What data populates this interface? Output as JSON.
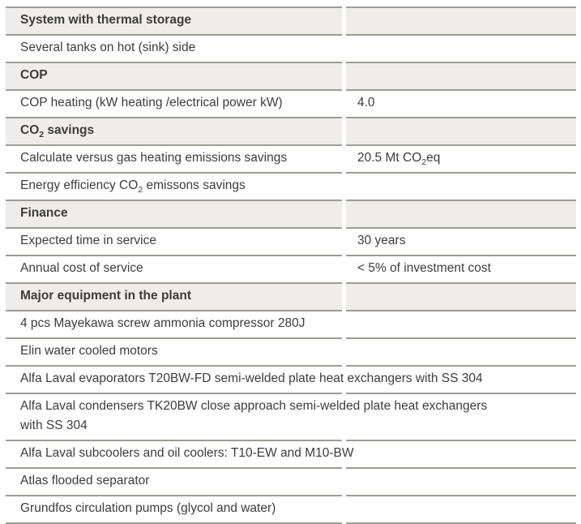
{
  "colors": {
    "page_bg": "#ffffff",
    "section_band_bg": "#eeedeb",
    "rule": "#9e9c98",
    "text": "#3d3d3d"
  },
  "table": {
    "rows": [
      {
        "type": "section",
        "label_parts": [
          {
            "t": "System with thermal storage"
          }
        ]
      },
      {
        "type": "item",
        "full_width": true,
        "label_parts": [
          {
            "t": "Several tanks on hot (sink) side"
          }
        ]
      },
      {
        "type": "section",
        "label_parts": [
          {
            "t": "COP"
          }
        ]
      },
      {
        "type": "item",
        "label_parts": [
          {
            "t": "COP heating (kW heating /electrical power kW)"
          }
        ],
        "value_parts": [
          {
            "t": "4.0"
          }
        ]
      },
      {
        "type": "section",
        "label_parts": [
          {
            "t": "CO"
          },
          {
            "t": "2",
            "sub": true
          },
          {
            "t": " savings"
          }
        ]
      },
      {
        "type": "item",
        "label_parts": [
          {
            "t": "Calculate versus gas heating emissions savings"
          }
        ],
        "value_parts": [
          {
            "t": "20.5 Mt CO"
          },
          {
            "t": "2",
            "sub": true
          },
          {
            "t": "eq"
          }
        ]
      },
      {
        "type": "item",
        "full_width": true,
        "label_parts": [
          {
            "t": "Energy efficiency CO"
          },
          {
            "t": "2",
            "sub": true
          },
          {
            "t": " emissons savings"
          }
        ]
      },
      {
        "type": "section",
        "label_parts": [
          {
            "t": "Finance"
          }
        ]
      },
      {
        "type": "item",
        "label_parts": [
          {
            "t": "Expected time in service"
          }
        ],
        "value_parts": [
          {
            "t": "30 years"
          }
        ]
      },
      {
        "type": "item",
        "label_parts": [
          {
            "t": "Annual cost of service"
          }
        ],
        "value_parts": [
          {
            "t": "< 5% of investment cost"
          }
        ]
      },
      {
        "type": "section",
        "label_parts": [
          {
            "t": "Major equipment in the plant"
          }
        ]
      },
      {
        "type": "item",
        "full_width": true,
        "label_parts": [
          {
            "t": "4 pcs Mayekawa screw ammonia compressor 280J"
          }
        ]
      },
      {
        "type": "item",
        "full_width": true,
        "label_parts": [
          {
            "t": "Elin water cooled motors"
          }
        ]
      },
      {
        "type": "item",
        "full_width": true,
        "label_parts": [
          {
            "t": "Alfa Laval evaporators T20BW-FD semi-welded plate heat exchangers with SS 304"
          }
        ]
      },
      {
        "type": "item",
        "full_width": true,
        "label_parts": [
          {
            "t": "Alfa Laval condensers TK20BW close approach semi-welded plate heat exchangers"
          },
          {
            "br": true
          },
          {
            "t": "with SS 304"
          }
        ]
      },
      {
        "type": "item",
        "full_width": true,
        "label_parts": [
          {
            "t": "Alfa Laval subcoolers and oil coolers: T10-EW and M10-BW"
          }
        ]
      },
      {
        "type": "item",
        "full_width": true,
        "label_parts": [
          {
            "t": "Atlas flooded separator"
          }
        ]
      },
      {
        "type": "item",
        "full_width": true,
        "label_parts": [
          {
            "t": "Grundfos circulation pumps (glycol and water)"
          }
        ]
      }
    ]
  }
}
